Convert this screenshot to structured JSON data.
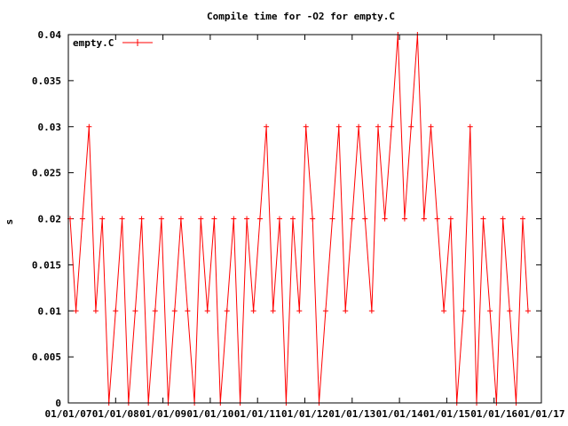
{
  "chart_data": {
    "type": "line",
    "title": "Compile time for -O2 for empty.C",
    "xlabel": "",
    "ylabel": "s",
    "ylim": [
      0,
      0.04
    ],
    "yticks": [
      "0",
      "0.005",
      "0.01",
      "0.015",
      "0.02",
      "0.025",
      "0.03",
      "0.035",
      "0.04"
    ],
    "xlim": [
      "2007-01-01",
      "2017-01-01"
    ],
    "xticks": [
      "01/01/07",
      "01/01/08",
      "01/01/09",
      "01/01/10",
      "01/01/11",
      "01/01/12",
      "01/01/13",
      "01/01/14",
      "01/01/15",
      "01/01/16",
      "01/01/17"
    ],
    "grid": false,
    "legend_position": "top-left",
    "series_color": "#ff0000",
    "series": [
      {
        "name": "empty.C",
        "x": [
          "2007-01-15",
          "2007-03-01",
          "2007-04-20",
          "2007-06-10",
          "2007-08-01",
          "2007-09-20",
          "2007-11-10",
          "2008-01-01",
          "2008-02-20",
          "2008-04-10",
          "2008-06-01",
          "2008-07-20",
          "2008-09-10",
          "2008-11-01",
          "2008-12-20",
          "2009-02-10",
          "2009-04-01",
          "2009-05-20",
          "2009-07-10",
          "2009-09-01",
          "2009-10-20",
          "2009-12-10",
          "2010-02-01",
          "2010-03-20",
          "2010-05-10",
          "2010-07-01",
          "2010-08-20",
          "2010-10-10",
          "2010-12-01",
          "2011-01-20",
          "2011-03-10",
          "2011-05-01",
          "2011-06-20",
          "2011-08-10",
          "2011-10-01",
          "2011-11-20",
          "2012-01-10",
          "2012-03-01",
          "2012-04-20",
          "2012-06-10",
          "2012-08-01",
          "2012-09-20",
          "2012-11-10",
          "2013-01-01",
          "2013-02-20",
          "2013-04-10",
          "2013-06-01",
          "2013-07-20",
          "2013-09-10",
          "2013-11-01",
          "2013-12-20",
          "2014-02-10",
          "2014-04-01",
          "2014-05-20",
          "2014-07-10",
          "2014-09-01",
          "2014-10-20",
          "2014-12-10",
          "2015-02-01",
          "2015-03-20",
          "2015-05-10",
          "2015-07-01",
          "2015-08-20",
          "2015-10-10",
          "2015-12-01",
          "2016-01-20",
          "2016-03-10",
          "2016-05-01",
          "2016-06-20",
          "2016-08-10",
          "2016-09-20"
        ],
        "y": [
          0.02,
          0.01,
          0.02,
          0.03,
          0.01,
          0.02,
          0.0,
          0.01,
          0.02,
          0.0,
          0.01,
          0.02,
          0.0,
          0.01,
          0.02,
          0.0,
          0.01,
          0.02,
          0.01,
          0.0,
          0.02,
          0.01,
          0.02,
          0.0,
          0.01,
          0.02,
          0.0,
          0.02,
          0.01,
          0.02,
          0.03,
          0.01,
          0.02,
          0.0,
          0.02,
          0.01,
          0.03,
          0.02,
          0.0,
          0.01,
          0.02,
          0.03,
          0.01,
          0.02,
          0.03,
          0.02,
          0.01,
          0.03,
          0.02,
          0.03,
          0.04,
          0.02,
          0.03,
          0.04,
          0.02,
          0.03,
          0.02,
          0.01,
          0.02,
          0.0,
          0.01,
          0.03,
          0.0,
          0.02,
          0.01,
          0.0,
          0.02,
          0.01,
          0.0,
          0.02,
          0.01
        ]
      }
    ]
  }
}
